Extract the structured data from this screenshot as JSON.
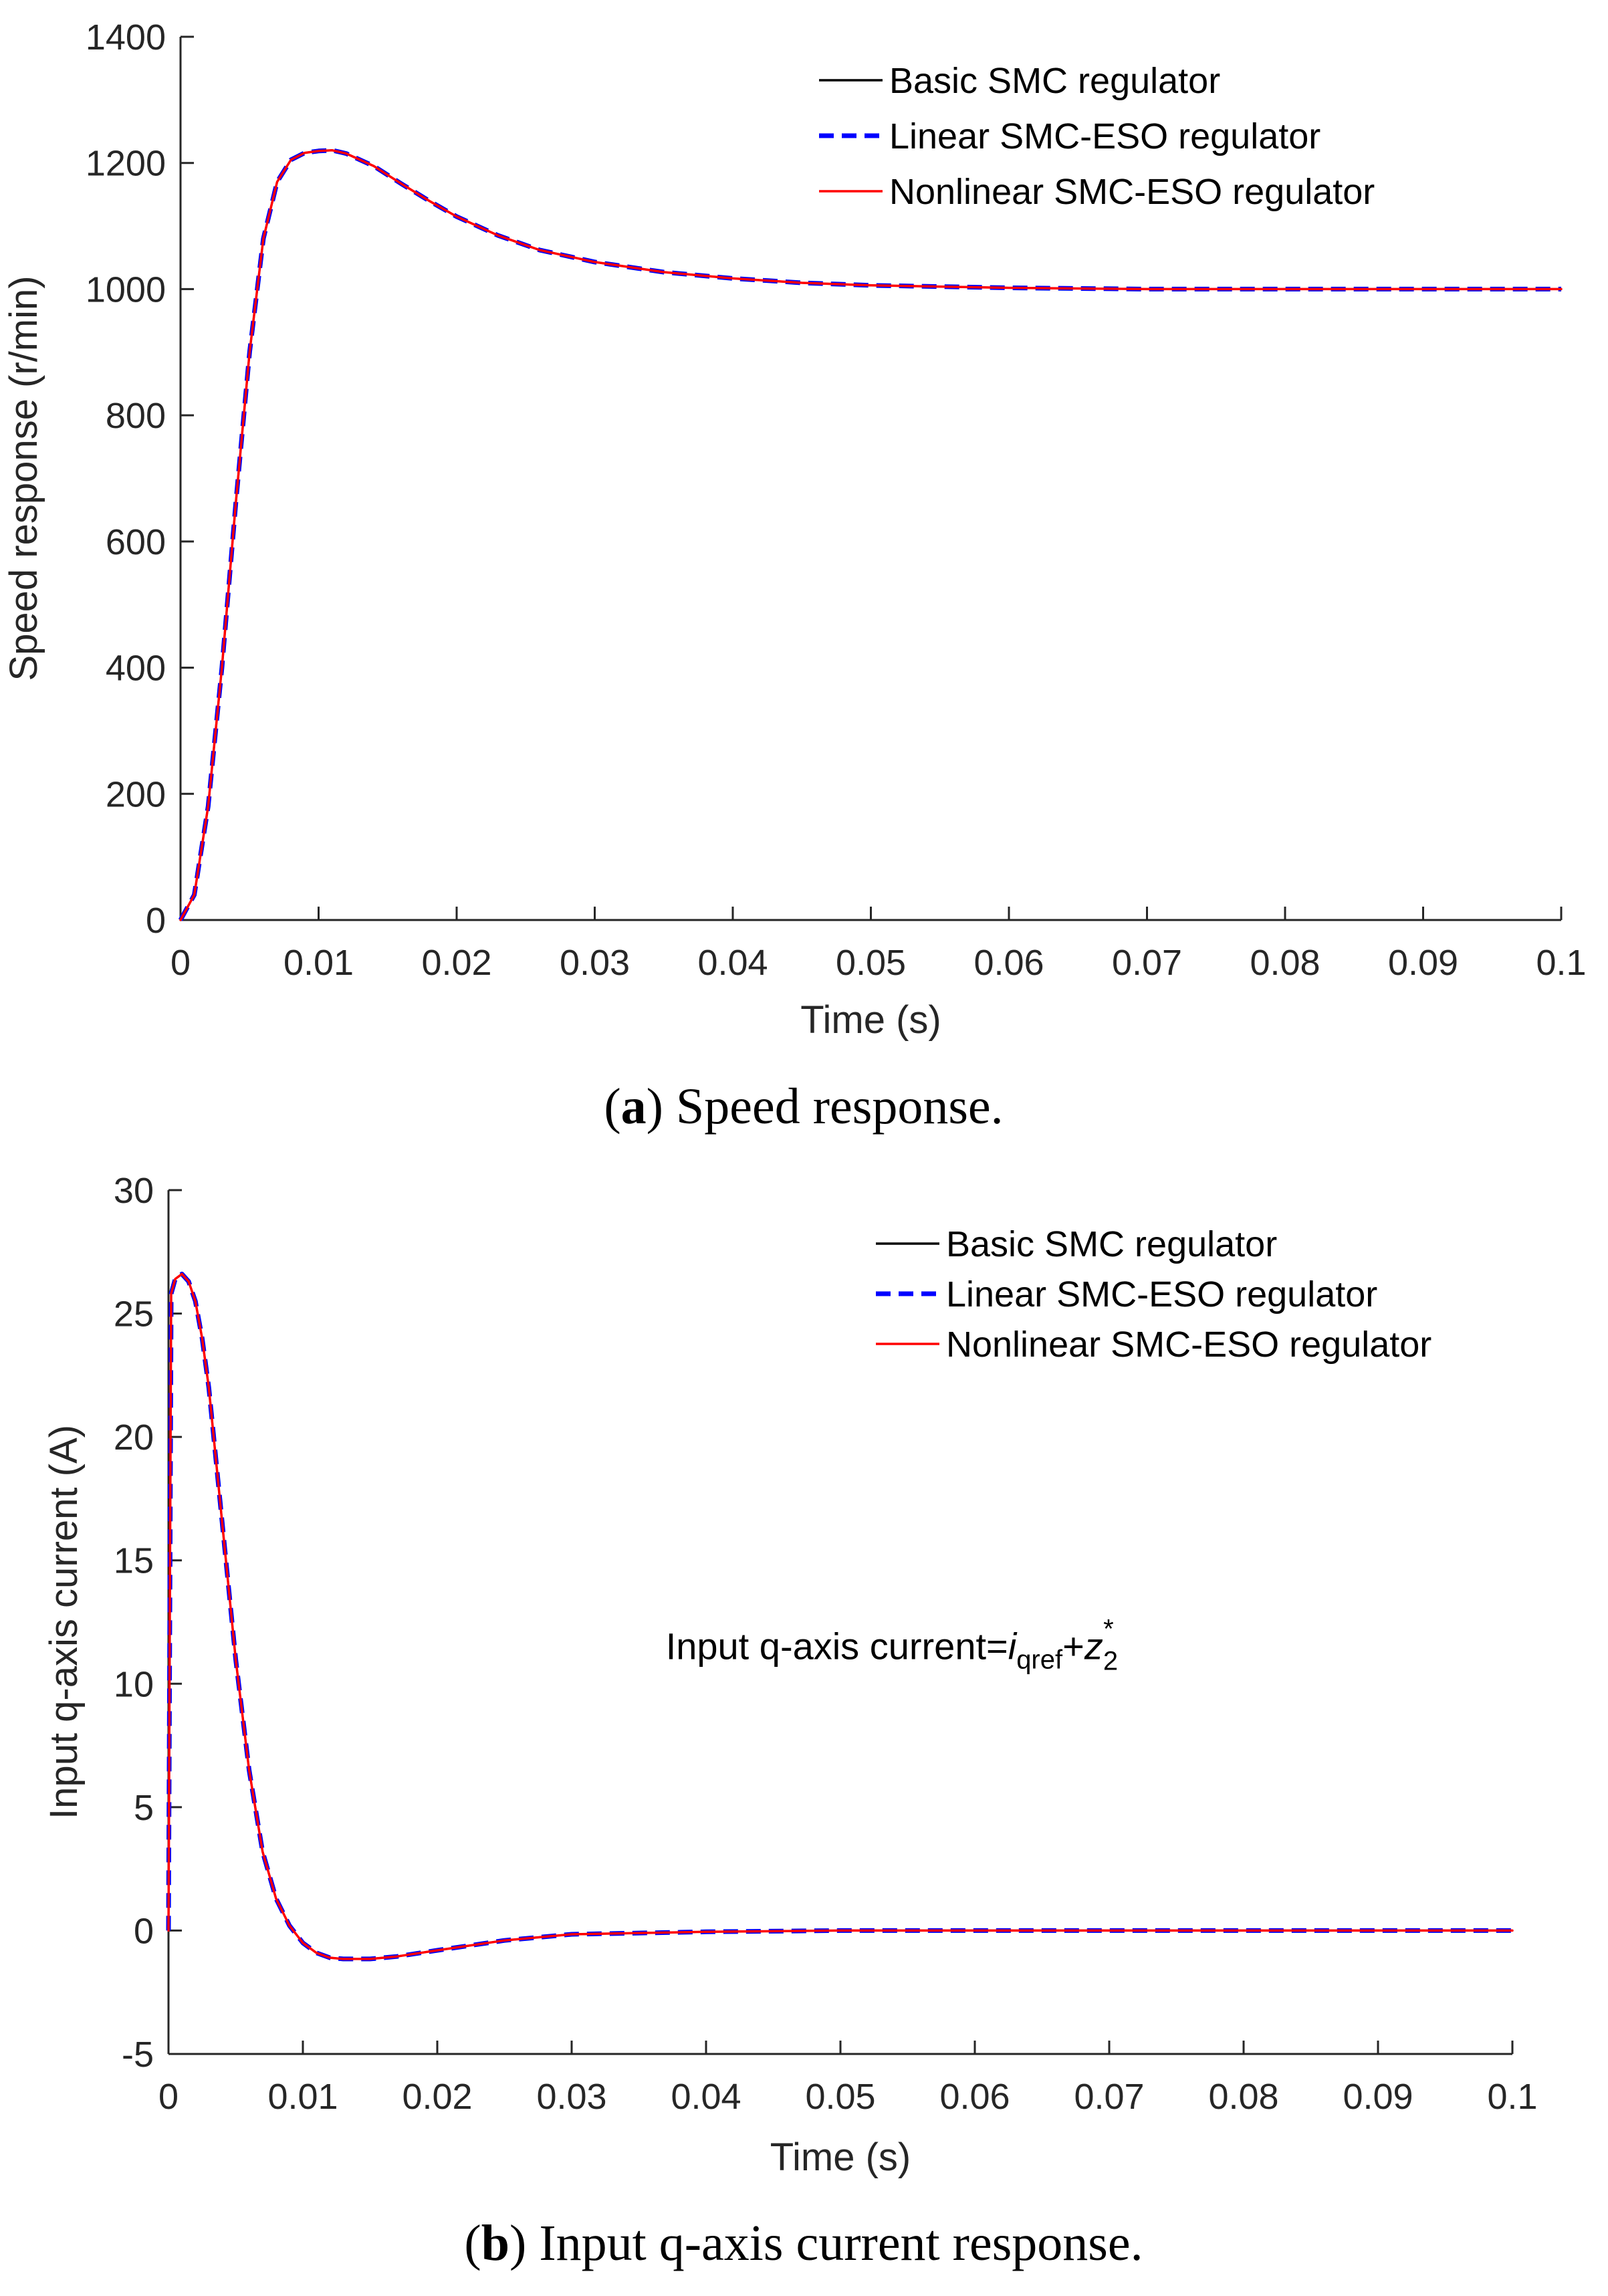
{
  "colors": {
    "basic": "#000000",
    "linear": "#0000ff",
    "nonlinear": "#ff0000",
    "axis": "#262626"
  },
  "legend_labels": [
    "Basic SMC regulator",
    "Linear SMC-ESO regulator",
    "Nonlinear SMC-ESO regulator"
  ],
  "chart_data": [
    {
      "type": "line",
      "caption_letter": "a",
      "caption_text": "Speed response.",
      "xlabel": "Time (s)",
      "ylabel": "Speed response (r/min)",
      "xlim": [
        0,
        0.1
      ],
      "ylim": [
        0,
        1400
      ],
      "xticks": [
        0,
        0.01,
        0.02,
        0.03,
        0.04,
        0.05,
        0.06,
        0.07,
        0.08,
        0.09,
        0.1
      ],
      "xtick_labels": [
        "0",
        "0.01",
        "0.02",
        "0.03",
        "0.04",
        "0.05",
        "0.06",
        "0.07",
        "0.08",
        "0.09",
        "0.1"
      ],
      "yticks": [
        0,
        200,
        400,
        600,
        800,
        1000,
        1200,
        1400
      ],
      "ytick_labels": [
        "0",
        "200",
        "400",
        "600",
        "800",
        "1000",
        "1200",
        "1400"
      ],
      "legend_position": "top-right",
      "x": [
        0,
        0.001,
        0.002,
        0.003,
        0.004,
        0.005,
        0.006,
        0.007,
        0.008,
        0.009,
        0.01,
        0.011,
        0.012,
        0.014,
        0.016,
        0.018,
        0.02,
        0.023,
        0.026,
        0.03,
        0.035,
        0.04,
        0.045,
        0.05,
        0.06,
        0.07,
        0.08,
        0.09,
        0.1
      ],
      "series": [
        {
          "name": "Basic SMC regulator",
          "style": "solid",
          "values": [
            0,
            40,
            180,
            400,
            660,
            900,
            1080,
            1170,
            1205,
            1216,
            1219,
            1220,
            1215,
            1195,
            1167,
            1140,
            1115,
            1085,
            1062,
            1043,
            1027,
            1017,
            1010,
            1006,
            1002,
            1000,
            1000,
            1000,
            1000
          ]
        },
        {
          "name": "Linear SMC-ESO regulator",
          "style": "dashed",
          "values": [
            0,
            40,
            180,
            400,
            660,
            900,
            1080,
            1170,
            1205,
            1216,
            1219,
            1220,
            1215,
            1195,
            1167,
            1140,
            1115,
            1085,
            1062,
            1043,
            1027,
            1017,
            1010,
            1006,
            1002,
            1000,
            1000,
            1000,
            1000
          ]
        },
        {
          "name": "Nonlinear SMC-ESO regulator",
          "style": "solid",
          "values": [
            0,
            40,
            180,
            400,
            660,
            900,
            1080,
            1170,
            1205,
            1216,
            1219,
            1220,
            1215,
            1195,
            1167,
            1140,
            1115,
            1085,
            1062,
            1043,
            1027,
            1017,
            1010,
            1006,
            1002,
            1000,
            1000,
            1000,
            1000
          ]
        }
      ]
    },
    {
      "type": "line",
      "caption_letter": "b",
      "caption_text": "Input q-axis current response.",
      "xlabel": "Time (s)",
      "ylabel": "Input q-axis current (A)",
      "xlim": [
        0,
        0.1
      ],
      "ylim": [
        -5,
        30
      ],
      "xticks": [
        0,
        0.01,
        0.02,
        0.03,
        0.04,
        0.05,
        0.06,
        0.07,
        0.08,
        0.09,
        0.1
      ],
      "xtick_labels": [
        "0",
        "0.01",
        "0.02",
        "0.03",
        "0.04",
        "0.05",
        "0.06",
        "0.07",
        "0.08",
        "0.09",
        "0.1"
      ],
      "yticks": [
        -5,
        0,
        5,
        10,
        15,
        20,
        25,
        30
      ],
      "ytick_labels": [
        "-5",
        "0",
        "5",
        "10",
        "15",
        "20",
        "25",
        "30"
      ],
      "legend_position": "top-right",
      "annotation": {
        "prefix": "Input q-axis current=",
        "var1": "i",
        "sub1": "qref",
        "plus": "+",
        "var2": "z",
        "sub2": "2",
        "sup2": "*",
        "x": 0.037,
        "y": 11
      },
      "x": [
        0,
        0.0002,
        0.0005,
        0.001,
        0.0015,
        0.002,
        0.0025,
        0.003,
        0.004,
        0.005,
        0.006,
        0.007,
        0.008,
        0.009,
        0.01,
        0.011,
        0.012,
        0.013,
        0.015,
        0.017,
        0.02,
        0.025,
        0.03,
        0.04,
        0.05,
        0.06,
        0.07,
        0.08,
        0.09,
        0.1
      ],
      "series": [
        {
          "name": "Basic SMC regulator",
          "style": "solid",
          "values": [
            0,
            25.8,
            26.4,
            26.6,
            26.3,
            25.5,
            24.0,
            22.0,
            16.5,
            11.0,
            6.5,
            3.2,
            1.3,
            0.2,
            -0.5,
            -0.9,
            -1.1,
            -1.15,
            -1.15,
            -1.05,
            -0.8,
            -0.4,
            -0.15,
            -0.05,
            0,
            0,
            0,
            0,
            0,
            0
          ]
        },
        {
          "name": "Linear SMC-ESO regulator",
          "style": "dashed",
          "values": [
            0,
            25.8,
            26.4,
            26.6,
            26.3,
            25.5,
            24.0,
            22.0,
            16.5,
            11.0,
            6.5,
            3.2,
            1.3,
            0.2,
            -0.5,
            -0.9,
            -1.1,
            -1.15,
            -1.15,
            -1.05,
            -0.8,
            -0.4,
            -0.15,
            -0.05,
            0,
            0,
            0,
            0,
            0,
            0
          ]
        },
        {
          "name": "Nonlinear SMC-ESO regulator",
          "style": "solid",
          "values": [
            0,
            25.8,
            26.4,
            26.6,
            26.3,
            25.5,
            24.0,
            22.0,
            16.5,
            11.0,
            6.5,
            3.2,
            1.3,
            0.2,
            -0.5,
            -0.9,
            -1.1,
            -1.15,
            -1.15,
            -1.05,
            -0.8,
            -0.4,
            -0.15,
            -0.05,
            0,
            0,
            0,
            0,
            0,
            0
          ]
        }
      ]
    }
  ]
}
